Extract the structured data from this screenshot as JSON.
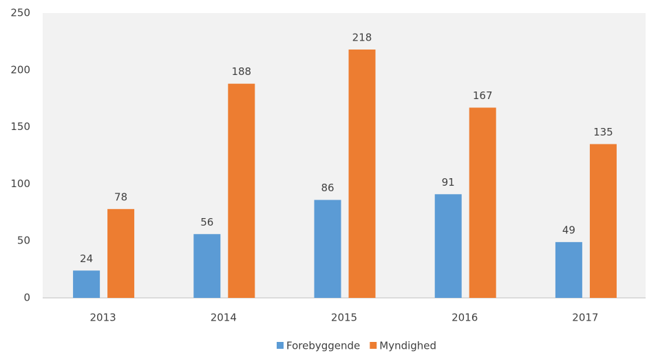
{
  "chart_data": {
    "type": "bar",
    "categories": [
      "2013",
      "2014",
      "2015",
      "2016",
      "2017"
    ],
    "series": [
      {
        "name": "Forebyggende",
        "color": "#5b9bd5",
        "values": [
          24,
          56,
          86,
          91,
          49
        ]
      },
      {
        "name": "Myndighed",
        "color": "#ed7d31",
        "values": [
          78,
          188,
          218,
          167,
          135
        ]
      }
    ],
    "ylim": [
      0,
      250
    ],
    "yticks": [
      0,
      50,
      100,
      150,
      200,
      250
    ],
    "grid": false,
    "legend": "bottom"
  }
}
